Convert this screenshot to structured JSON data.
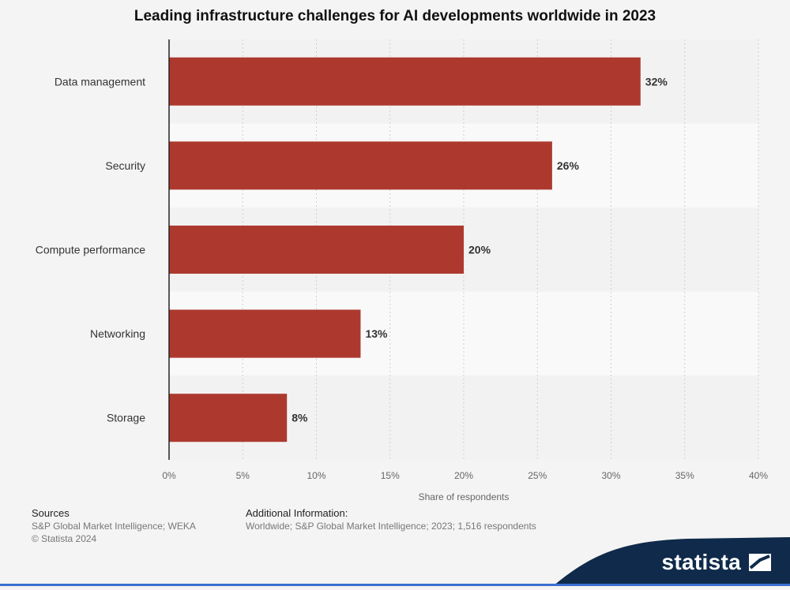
{
  "chart_data": {
    "type": "bar",
    "orientation": "horizontal",
    "title": "Leading infrastructure challenges for AI developments worldwide in 2023",
    "categories": [
      "Data management",
      "Security",
      "Compute performance",
      "Networking",
      "Storage"
    ],
    "values": [
      32,
      26,
      20,
      13,
      8
    ],
    "value_labels": [
      "32%",
      "26%",
      "20%",
      "13%",
      "8%"
    ],
    "xlabel": "Share of respondents",
    "ylabel": "",
    "xlim": [
      0,
      40
    ],
    "x_ticks": [
      0,
      5,
      10,
      15,
      20,
      25,
      30,
      35,
      40
    ],
    "x_tick_labels": [
      "0%",
      "5%",
      "10%",
      "15%",
      "20%",
      "25%",
      "30%",
      "35%",
      "40%"
    ],
    "grid": true,
    "bar_color": "#ad392e"
  },
  "footer": {
    "sources_heading": "Sources",
    "sources_text": "S&P Global Market Intelligence; WEKA",
    "copyright": "© Statista 2024",
    "additional_heading": "Additional Information:",
    "additional_text": "Worldwide; S&P Global Market Intelligence; 2023; 1,516 respondents"
  },
  "brand": {
    "name": "statista",
    "color": "#0f2a4a"
  }
}
